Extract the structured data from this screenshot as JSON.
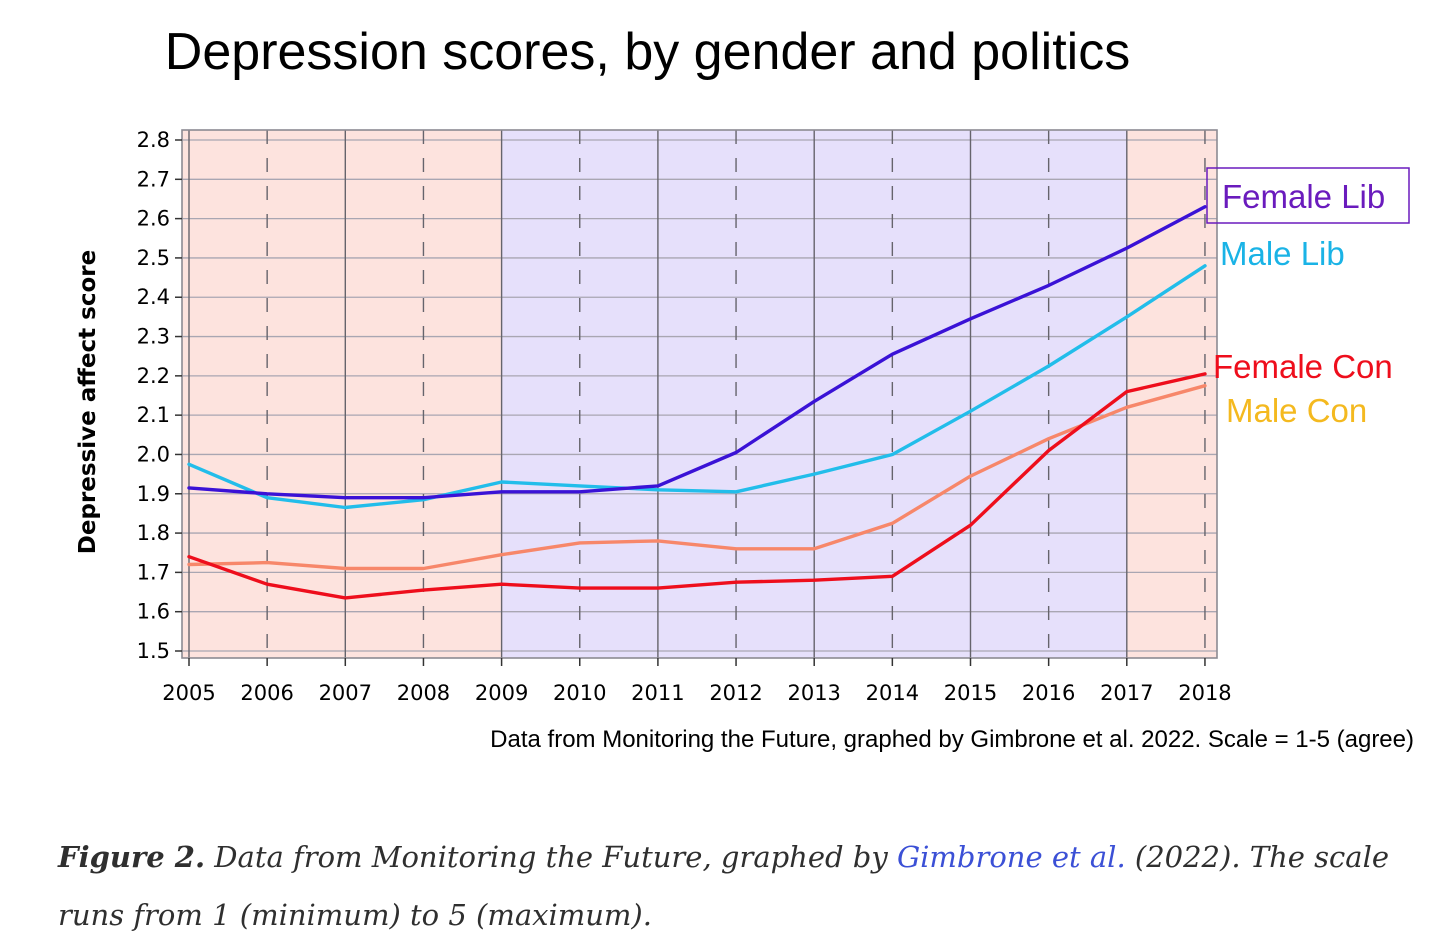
{
  "chart_data": {
    "type": "line",
    "title": "Depression scores, by gender and politics",
    "ylabel": "Depressive affect score",
    "xlabel": "",
    "x": [
      2005,
      2006,
      2007,
      2008,
      2009,
      2010,
      2011,
      2012,
      2013,
      2014,
      2015,
      2016,
      2017,
      2018
    ],
    "ylim": [
      1.5,
      2.8
    ],
    "yticks": [
      1.5,
      1.6,
      1.7,
      1.8,
      1.9,
      2.0,
      2.1,
      2.2,
      2.3,
      2.4,
      2.5,
      2.6,
      2.7,
      2.8
    ],
    "ytick_labels": [
      "1.5",
      "1.6",
      "1.7",
      "1.8",
      "1.9",
      "2.0",
      "2.1",
      "2.2",
      "2.3",
      "2.4",
      "2.5",
      "2.6",
      "2.7",
      "2.8"
    ],
    "grid": true,
    "background_bands": [
      {
        "from": 2005,
        "to": 2009,
        "color": "#fde3de"
      },
      {
        "from": 2009,
        "to": 2017,
        "color": "#e6e0fb"
      },
      {
        "from": 2017,
        "to": 2018,
        "color": "#fde3de"
      }
    ],
    "series": [
      {
        "name": "Female Lib",
        "color": "#3a12d6",
        "label_color": "#6a1bbd",
        "boxed": true,
        "values": [
          1.915,
          1.9,
          1.89,
          1.89,
          1.905,
          1.905,
          1.92,
          2.005,
          2.135,
          2.255,
          2.345,
          2.43,
          2.525,
          2.63
        ]
      },
      {
        "name": "Male Lib",
        "color": "#22bdea",
        "label_color": "#1ab3e6",
        "values": [
          1.975,
          1.89,
          1.865,
          1.885,
          1.93,
          1.92,
          1.91,
          1.905,
          1.95,
          2.0,
          2.11,
          2.225,
          2.35,
          2.48
        ]
      },
      {
        "name": "Female Con",
        "color": "#ee0e1c",
        "label_color": "#ee0e1c",
        "values": [
          1.74,
          1.67,
          1.635,
          1.655,
          1.67,
          1.66,
          1.66,
          1.675,
          1.68,
          1.69,
          1.82,
          2.01,
          2.16,
          2.205
        ]
      },
      {
        "name": "Male Con",
        "color": "#f7876a",
        "label_color": "#f4b91f",
        "values": [
          1.72,
          1.725,
          1.71,
          1.71,
          1.745,
          1.775,
          1.78,
          1.76,
          1.76,
          1.825,
          1.945,
          2.04,
          2.12,
          2.175
        ]
      }
    ]
  },
  "source_note": "Data from Monitoring the Future, graphed by Gimbrone et al. 2022. Scale = 1-5 (agree)",
  "caption": {
    "figure_label": "Figure 2.",
    "text_before": " Data from Monitoring the Future, graphed by ",
    "link_text": "Gimbrone et al.",
    "text_after": " (2022). The scale runs from 1 (minimum) to 5 (maximum)."
  }
}
